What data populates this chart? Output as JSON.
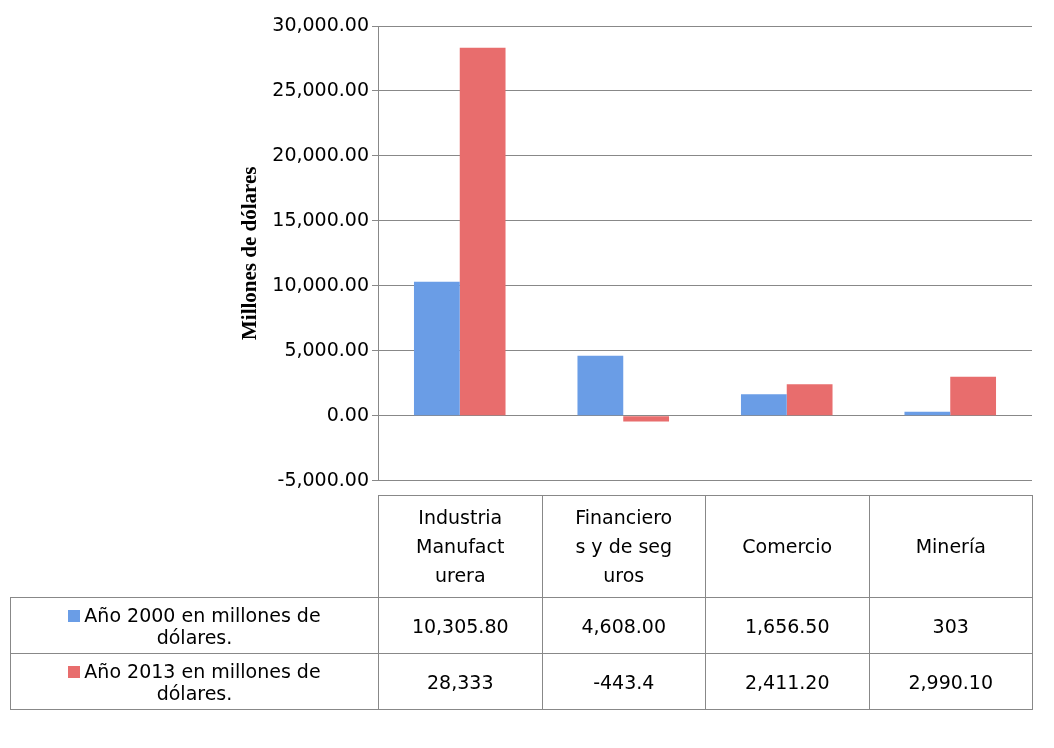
{
  "chart_data": {
    "type": "bar",
    "ylabel": "Millones de dólares",
    "categories": [
      "Industria Manufacturera",
      "Financieros y de seguros",
      "Comercio",
      "Minería"
    ],
    "series": [
      {
        "name": "Año 2000 en  millones de dólares.",
        "color": "#6a9de6",
        "values": [
          10305.8,
          4608,
          1656.5,
          303
        ],
        "value_labels": [
          "10,305.80",
          "4,608.00",
          "1,656.50",
          "303"
        ]
      },
      {
        "name": "Año 2013 en  millones de dólares.",
        "color": "#e86d6d",
        "values": [
          28333,
          -443.4,
          2411.2,
          2990.1
        ],
        "value_labels": [
          "28,333",
          "-443.4",
          "2,411.20",
          "2,990.10"
        ]
      }
    ],
    "ylim": [
      -5000,
      30000
    ],
    "yticks": [
      {
        "value": -5000,
        "label": "-5,000.00"
      },
      {
        "value": 0,
        "label": "0.00"
      },
      {
        "value": 5000,
        "label": "5,000.00"
      },
      {
        "value": 10000,
        "label": "10,000.00"
      },
      {
        "value": 15000,
        "label": "15,000.00"
      },
      {
        "value": 20000,
        "label": "20,000.00"
      },
      {
        "value": 25000,
        "label": "25,000.00"
      },
      {
        "value": 30000,
        "label": "30,000.00"
      }
    ],
    "grid": "y",
    "legend": "bottom"
  }
}
